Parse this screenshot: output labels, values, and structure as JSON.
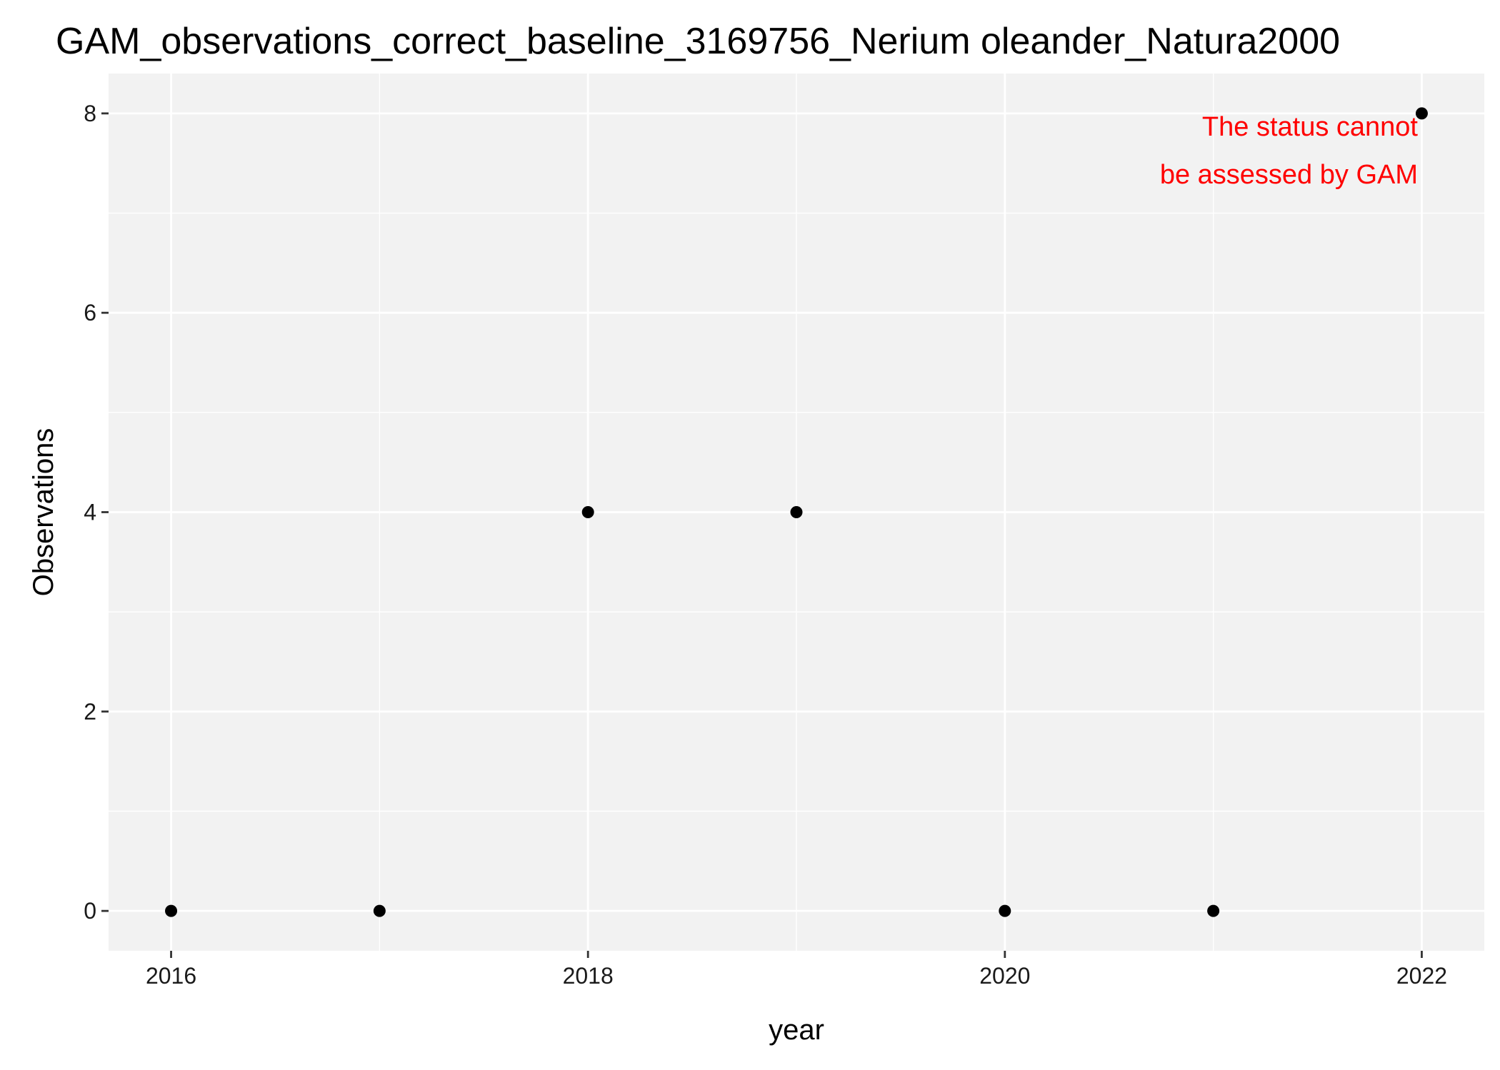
{
  "chart_data": {
    "type": "scatter",
    "title": "GAM_observations_correct_baseline_3169756_Nerium oleander_Natura2000",
    "xlabel": "year",
    "ylabel": "Observations",
    "x": [
      2016,
      2017,
      2018,
      2019,
      2020,
      2021,
      2022
    ],
    "y": [
      0,
      0,
      4,
      4,
      0,
      0,
      8
    ],
    "xlim": [
      2015.7,
      2022.3
    ],
    "ylim": [
      -0.4,
      8.4
    ],
    "x_ticks": [
      2016,
      2018,
      2020,
      2022
    ],
    "y_ticks": [
      0,
      2,
      4,
      6,
      8
    ],
    "grid": true,
    "panel_color": "#f2f2f2",
    "point_color": "#000000",
    "annotation": {
      "lines": [
        "The status cannot",
        "be assessed by GAM"
      ],
      "color": "#ff0000",
      "placement": "top-right"
    }
  }
}
